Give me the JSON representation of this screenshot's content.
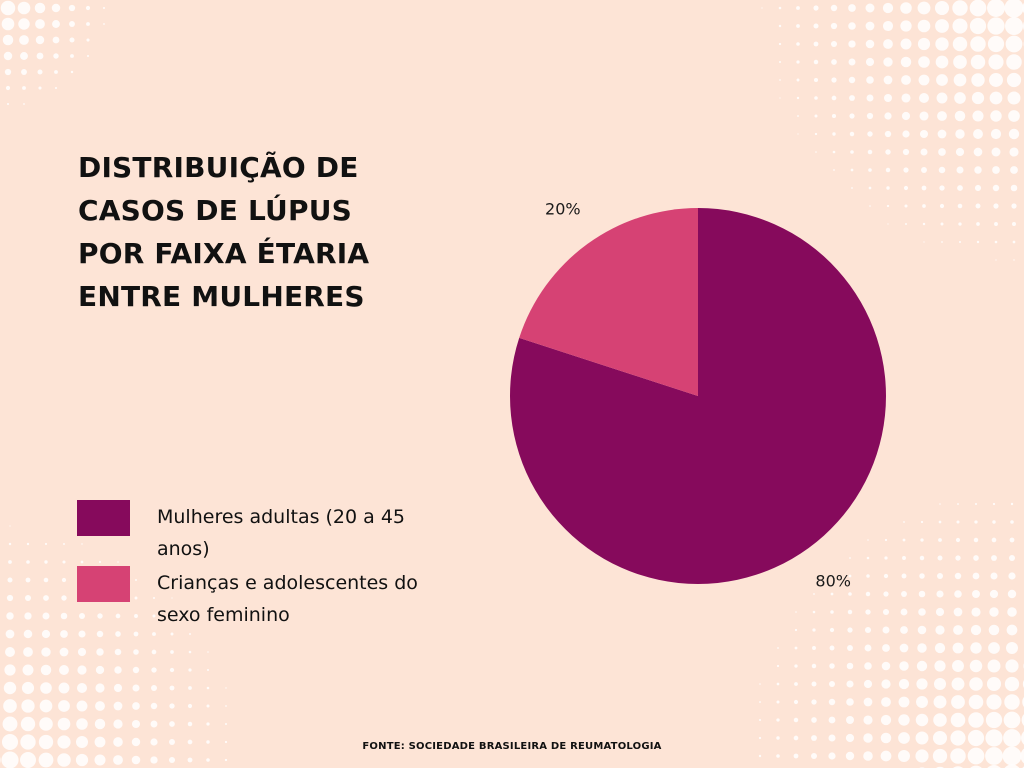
{
  "background_color": "#fde4d6",
  "dot_color": "#ffffff",
  "chart_data": {
    "type": "pie",
    "title": "DISTRIBUIÇÃO DE\nCASOS DE LÚPUS\nPOR FAIXA ÉTARIA\nENTRE MULHERES",
    "slices": [
      {
        "name": "Mulheres adultas (20 a 45 anos)",
        "value": 80,
        "label": "80%",
        "color": "#860a5c"
      },
      {
        "name": "Crianças e adolescentes do sexo feminino",
        "value": 20,
        "label": "20%",
        "color": "#d64274"
      }
    ],
    "legend_position": "bottom-left"
  },
  "legend": {
    "items": [
      {
        "label": "Mulheres adultas (20 a 45 anos)",
        "color": "#860a5c"
      },
      {
        "label": "Crianças e adolescentes do sexo feminino",
        "color": "#d64274"
      }
    ]
  },
  "source": "FONTE: SOCIEDADE BRASILEIRA DE REUMATOLOGIA"
}
